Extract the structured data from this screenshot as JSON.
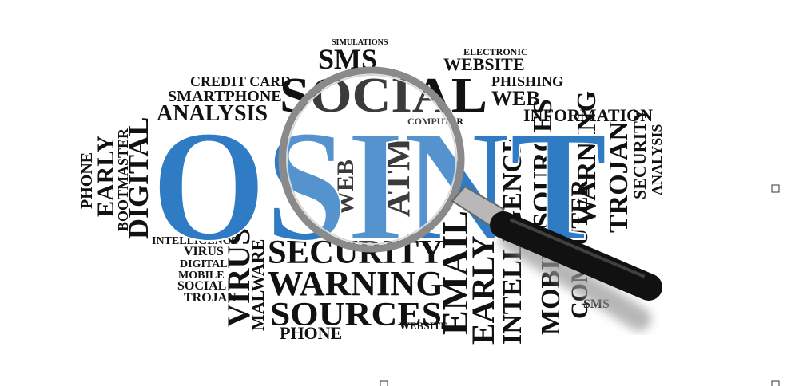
{
  "words": [
    "OSINT",
    "SOCIAL",
    "SMS",
    "WEBSITE",
    "CREDIT CARD",
    "SMARTPHONE",
    "ANALYSIS",
    "INFORMATION",
    "PHISHING",
    "WEB",
    "SECURITY",
    "WARNING",
    "SOURCES",
    "PHONE",
    "EMAIL",
    "EARLY",
    "INTELLIGENCE",
    "MOBILE",
    "COMPUTER",
    "VIRUS",
    "MALWARE",
    "DIGITAL",
    "EARLY",
    "PHONE",
    "BOOTMASTER",
    "INTELLIGENCE",
    "VIRUS",
    "DIGITAL",
    "MOBILE",
    "SOCIAL",
    "TROJAN",
    "TROJAN",
    "WARNING",
    "SOURCES",
    "SECURITY",
    "ANALYSIS",
    "SIMULATIONS",
    "ELECTRONIC",
    "COMPUTER",
    "ATM",
    "WEB",
    "WEBSITE",
    "SMS"
  ]
}
